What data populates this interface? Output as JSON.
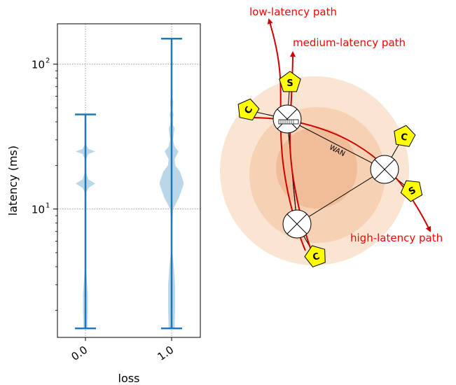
{
  "chart_data": {
    "type": "violin",
    "xlabel": "loss",
    "ylabel": "latency (ms)",
    "yscale": "log",
    "ylim": [
      1.3,
      190
    ],
    "categories": [
      "0.0",
      "1.0"
    ],
    "yticks": [
      {
        "value": 10,
        "base": "10",
        "exp": "1"
      },
      {
        "value": 100,
        "base": "10",
        "exp": "2"
      }
    ],
    "grid": true,
    "series": [
      {
        "category": "0.0",
        "min": 1.5,
        "max": 45,
        "profile": [
          [
            1.5,
            0.08
          ],
          [
            2.0,
            0.1
          ],
          [
            2.6,
            0.1
          ],
          [
            3.2,
            0.06
          ],
          [
            4.0,
            0.02
          ],
          [
            6,
            0.01
          ],
          [
            10,
            0.01
          ],
          [
            13,
            0.03
          ],
          [
            14,
            0.12
          ],
          [
            15,
            0.4
          ],
          [
            16,
            0.12
          ],
          [
            18,
            0.02
          ],
          [
            22,
            0.02
          ],
          [
            24,
            0.12
          ],
          [
            25,
            0.4
          ],
          [
            26,
            0.12
          ],
          [
            28,
            0.02
          ],
          [
            35,
            0.01
          ],
          [
            45,
            0.01
          ]
        ]
      },
      {
        "category": "1.0",
        "min": 1.5,
        "max": 150,
        "profile": [
          [
            1.5,
            0.12
          ],
          [
            2.0,
            0.14
          ],
          [
            3.0,
            0.14
          ],
          [
            4.0,
            0.09
          ],
          [
            5.0,
            0.03
          ],
          [
            7,
            0.01
          ],
          [
            10,
            0.06
          ],
          [
            12,
            0.3
          ],
          [
            15,
            0.5
          ],
          [
            18,
            0.35
          ],
          [
            20,
            0.15
          ],
          [
            22,
            0.12
          ],
          [
            25,
            0.28
          ],
          [
            27,
            0.12
          ],
          [
            30,
            0.06
          ],
          [
            34,
            0.1
          ],
          [
            36,
            0.12
          ],
          [
            38,
            0.06
          ],
          [
            42,
            0.05
          ],
          [
            45,
            0.08
          ],
          [
            48,
            0.04
          ],
          [
            55,
            0.06
          ],
          [
            60,
            0.03
          ],
          [
            65,
            0.04
          ],
          [
            75,
            0.01
          ],
          [
            150,
            0.01
          ]
        ]
      }
    ]
  },
  "diagram": {
    "wan_label": "WAN",
    "paths": [
      {
        "label": "low-latency path",
        "color": "#ff0000"
      },
      {
        "label": "medium-latency path",
        "color": "#ff0000"
      },
      {
        "label": "high-latency path",
        "color": "#ff0000"
      }
    ],
    "pentagons": [
      {
        "letter": "S"
      },
      {
        "letter": "C"
      },
      {
        "letter": "C"
      },
      {
        "letter": "S"
      },
      {
        "letter": "C"
      }
    ]
  },
  "colors": {
    "violin_fill": "#a9cce3",
    "violin_line": "#1f77b4",
    "ring_outer": "#fae5d3",
    "ring_mid": "#f6d1b4",
    "ring_inner": "#f1bc98",
    "path": "#cc0000",
    "pentagon": "#ffff00"
  }
}
